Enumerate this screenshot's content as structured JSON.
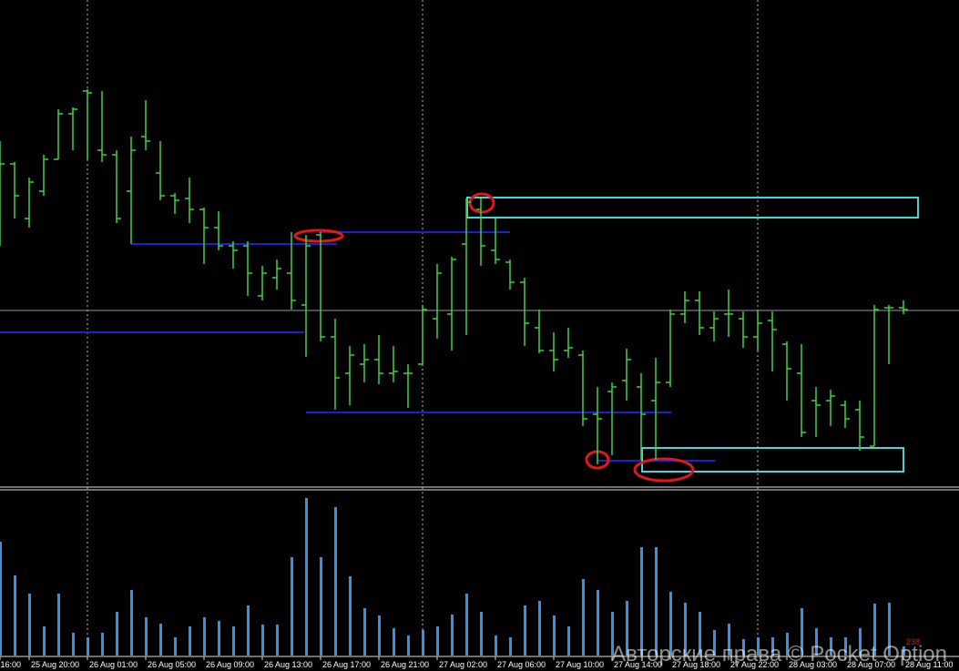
{
  "chart_data": [
    {
      "type": "ohlc",
      "color": "#3ad53a",
      "ylim": [
        0,
        535
      ],
      "categories": [
        "16:00",
        null,
        "25 Aug 20:00",
        null,
        null,
        null,
        "26 Aug 01:00",
        null,
        null,
        null,
        "26 Aug 05:00",
        null,
        null,
        null,
        "26 Aug 09:00",
        null,
        null,
        null,
        "26 Aug 13:00",
        null,
        null,
        null,
        "26 Aug 17:00",
        null,
        null,
        null,
        "26 Aug 21:00",
        null,
        null,
        null,
        "27 Aug 02:00",
        null,
        null,
        null,
        "27 Aug 06:00",
        null,
        null,
        null,
        "27 Aug 10:00",
        null,
        null,
        null,
        "27 Aug 14:00",
        null,
        null,
        null,
        "27 Aug 18:00",
        null,
        null,
        null,
        "27 Aug 22:00",
        null,
        null,
        null,
        "28 Aug 03:00",
        null,
        null,
        null,
        "28 Aug 07:00",
        null,
        null,
        null,
        "28 Aug 11:00"
      ],
      "open": [
        375,
        355,
        295,
        325,
        360,
        410,
        435,
        370,
        365,
        325,
        385,
        345,
        320,
        317,
        305,
        285,
        265,
        265,
        210,
        230,
        235,
        200,
        277,
        165,
        125,
        135,
        140,
        125,
        125,
        135,
        185,
        190,
        267,
        305,
        260,
        247,
        225,
        175,
        150,
        150,
        145,
        80,
        105,
        117,
        110,
        95,
        115,
        190,
        205,
        175,
        190,
        185,
        165,
        183,
        157,
        125,
        95,
        95,
        90,
        85,
        45,
        197,
        197
      ],
      "high": [
        380,
        357,
        340,
        365,
        415,
        417,
        437,
        435,
        370,
        385,
        425,
        380,
        323,
        340,
        307,
        303,
        270,
        270,
        243,
        250,
        280,
        277,
        280,
        185,
        155,
        157,
        167,
        155,
        135,
        200,
        245,
        253,
        317,
        317,
        295,
        250,
        230,
        195,
        170,
        175,
        150,
        110,
        115,
        152,
        125,
        142,
        195,
        215,
        215,
        193,
        217,
        193,
        193,
        193,
        160,
        157,
        110,
        107,
        95,
        95,
        200,
        200,
        205
      ],
      "low": [
        265,
        295,
        285,
        320,
        360,
        370,
        360,
        357,
        290,
        267,
        370,
        315,
        300,
        290,
        245,
        260,
        240,
        210,
        205,
        217,
        195,
        143,
        160,
        85,
        90,
        115,
        113,
        115,
        87,
        135,
        163,
        150,
        167,
        243,
        245,
        217,
        155,
        147,
        127,
        142,
        67,
        25,
        35,
        95,
        30,
        30,
        110,
        180,
        167,
        160,
        165,
        153,
        150,
        127,
        95,
        55,
        55,
        67,
        65,
        40,
        45,
        135,
        190
      ],
      "close": [
        355,
        320,
        335,
        360,
        410,
        415,
        433,
        365,
        295,
        370,
        380,
        320,
        315,
        305,
        285,
        265,
        260,
        235,
        235,
        240,
        205,
        265,
        165,
        120,
        145,
        140,
        125,
        127,
        125,
        195,
        235,
        250,
        313,
        265,
        250,
        225,
        180,
        150,
        140,
        153,
        75,
        75,
        110,
        140,
        80,
        115,
        190,
        205,
        175,
        185,
        190,
        165,
        180,
        173,
        130,
        60,
        90,
        100,
        75,
        55,
        195,
        197,
        195
      ]
    },
    {
      "type": "bar",
      "color": "#3d8fe6",
      "ylim": [
        0,
        180
      ],
      "annotation": "238",
      "values": [
        125,
        88,
        68,
        32,
        68,
        25,
        20,
        25,
        48,
        72,
        42,
        35,
        20,
        32,
        42,
        38,
        32,
        55,
        34,
        34,
        108,
        173,
        108,
        163,
        87,
        52,
        44,
        30,
        22,
        28,
        32,
        45,
        68,
        48,
        22,
        20,
        55,
        60,
        44,
        32,
        84,
        72,
        48,
        60,
        119,
        119,
        70,
        58,
        48,
        28,
        35,
        18,
        20,
        20,
        25,
        52,
        30,
        20,
        20,
        30,
        57,
        58,
        10
      ]
    }
  ],
  "watermark": "Авторские права © Pocket Option"
}
